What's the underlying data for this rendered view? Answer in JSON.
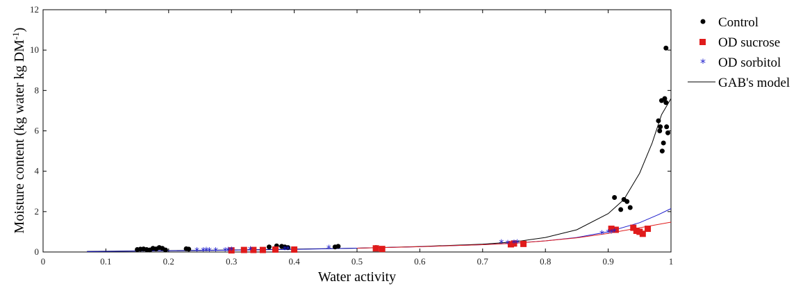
{
  "chart_data": {
    "type": "scatter",
    "xlabel": "Water activity",
    "ylabel_main": "Moisture content (kg water kg DM",
    "ylabel_sup": "-1",
    "ylabel_close": ")",
    "xlim": [
      0,
      1
    ],
    "ylim": [
      0,
      12
    ],
    "xticks": [
      0,
      0.1,
      0.2,
      0.3,
      0.4,
      0.5,
      0.6,
      0.7,
      0.8,
      0.9,
      1
    ],
    "xtick_labels": [
      "0",
      "0.1",
      "0.2",
      "0.3",
      "0.4",
      "0.5",
      "0.6",
      "0.7",
      "0.8",
      "0.9",
      "1"
    ],
    "yticks": [
      0,
      2,
      4,
      6,
      8,
      10,
      12
    ],
    "ytick_labels": [
      "0",
      "2",
      "4",
      "6",
      "8",
      "10",
      "12"
    ],
    "grid": false,
    "legend_position": "outside-right",
    "legend": [
      {
        "label": "Control",
        "marker": "circle",
        "color": "#000000"
      },
      {
        "label": "OD sucrose",
        "marker": "square",
        "color": "#e01b1b"
      },
      {
        "label": "OD sorbitol",
        "marker": "star",
        "color": "#1c1ccc"
      },
      {
        "label": "GAB's model",
        "marker": "line",
        "color": "#000000"
      }
    ],
    "series": [
      {
        "name": "Control",
        "marker": "circle",
        "color": "#000000",
        "points": [
          [
            0.15,
            0.12
          ],
          [
            0.155,
            0.14
          ],
          [
            0.16,
            0.15
          ],
          [
            0.165,
            0.12
          ],
          [
            0.17,
            0.1
          ],
          [
            0.175,
            0.18
          ],
          [
            0.18,
            0.15
          ],
          [
            0.185,
            0.22
          ],
          [
            0.19,
            0.18
          ],
          [
            0.195,
            0.1
          ],
          [
            0.228,
            0.16
          ],
          [
            0.232,
            0.14
          ],
          [
            0.36,
            0.25
          ],
          [
            0.372,
            0.3
          ],
          [
            0.38,
            0.28
          ],
          [
            0.385,
            0.25
          ],
          [
            0.39,
            0.22
          ],
          [
            0.4,
            0.15
          ],
          [
            0.465,
            0.25
          ],
          [
            0.47,
            0.28
          ],
          [
            0.53,
            0.22
          ],
          [
            0.91,
            2.7
          ],
          [
            0.92,
            2.1
          ],
          [
            0.925,
            2.6
          ],
          [
            0.93,
            2.5
          ],
          [
            0.935,
            2.2
          ],
          [
            0.98,
            6.5
          ],
          [
            0.982,
            6.0
          ],
          [
            0.983,
            6.2
          ],
          [
            0.985,
            7.5
          ],
          [
            0.986,
            5.0
          ],
          [
            0.988,
            5.4
          ],
          [
            0.99,
            7.6
          ],
          [
            0.992,
            7.4
          ],
          [
            0.993,
            6.2
          ],
          [
            0.995,
            5.9
          ],
          [
            0.992,
            10.1
          ]
        ]
      },
      {
        "name": "OD sucrose",
        "marker": "square",
        "color": "#e01b1b",
        "points": [
          [
            0.3,
            0.08
          ],
          [
            0.32,
            0.1
          ],
          [
            0.335,
            0.1
          ],
          [
            0.35,
            0.1
          ],
          [
            0.37,
            0.12
          ],
          [
            0.4,
            0.12
          ],
          [
            0.53,
            0.18
          ],
          [
            0.54,
            0.15
          ],
          [
            0.745,
            0.38
          ],
          [
            0.75,
            0.42
          ],
          [
            0.765,
            0.4
          ],
          [
            0.905,
            1.15
          ],
          [
            0.912,
            1.1
          ],
          [
            0.94,
            1.2
          ],
          [
            0.945,
            1.05
          ],
          [
            0.95,
            1.0
          ],
          [
            0.955,
            0.9
          ],
          [
            0.963,
            1.15
          ]
        ]
      },
      {
        "name": "OD sorbitol",
        "marker": "star",
        "color": "#1c1ccc",
        "points": [
          [
            0.245,
            0.05
          ],
          [
            0.255,
            0.06
          ],
          [
            0.26,
            0.07
          ],
          [
            0.265,
            0.05
          ],
          [
            0.275,
            0.06
          ],
          [
            0.29,
            0.06
          ],
          [
            0.295,
            0.07
          ],
          [
            0.3,
            0.08
          ],
          [
            0.33,
            0.1
          ],
          [
            0.385,
            0.12
          ],
          [
            0.39,
            0.12
          ],
          [
            0.455,
            0.18
          ],
          [
            0.73,
            0.45
          ],
          [
            0.74,
            0.42
          ],
          [
            0.75,
            0.43
          ],
          [
            0.755,
            0.44
          ],
          [
            0.89,
            0.9
          ],
          [
            0.9,
            0.95
          ],
          [
            0.905,
            0.95
          ],
          [
            0.91,
            1.0
          ]
        ]
      }
    ],
    "model_curves": [
      {
        "name": "GAB's model",
        "color": "#000000",
        "points": [
          [
            0.07,
            0.03
          ],
          [
            0.2,
            0.07
          ],
          [
            0.3,
            0.1
          ],
          [
            0.4,
            0.14
          ],
          [
            0.5,
            0.19
          ],
          [
            0.6,
            0.27
          ],
          [
            0.7,
            0.39
          ],
          [
            0.75,
            0.5
          ],
          [
            0.8,
            0.72
          ],
          [
            0.85,
            1.1
          ],
          [
            0.9,
            1.9
          ],
          [
            0.925,
            2.6
          ],
          [
            0.95,
            3.9
          ],
          [
            0.97,
            5.4
          ],
          [
            0.985,
            6.8
          ],
          [
            1.0,
            7.6
          ]
        ]
      },
      {
        "name": "OD sorbitol GAB",
        "color": "#1c1ccc",
        "points": [
          [
            0.07,
            0.02
          ],
          [
            0.2,
            0.06
          ],
          [
            0.3,
            0.09
          ],
          [
            0.4,
            0.13
          ],
          [
            0.5,
            0.19
          ],
          [
            0.6,
            0.26
          ],
          [
            0.7,
            0.36
          ],
          [
            0.75,
            0.44
          ],
          [
            0.8,
            0.55
          ],
          [
            0.85,
            0.72
          ],
          [
            0.9,
            1.0
          ],
          [
            0.95,
            1.45
          ],
          [
            0.98,
            1.85
          ],
          [
            1.0,
            2.15
          ]
        ]
      },
      {
        "name": "OD sucrose GAB",
        "color": "#e01b1b",
        "points": [
          [
            0.5,
            0.19
          ],
          [
            0.6,
            0.26
          ],
          [
            0.7,
            0.36
          ],
          [
            0.75,
            0.43
          ],
          [
            0.8,
            0.55
          ],
          [
            0.85,
            0.7
          ],
          [
            0.9,
            0.92
          ],
          [
            0.95,
            1.2
          ],
          [
            1.0,
            1.48
          ]
        ]
      }
    ]
  }
}
